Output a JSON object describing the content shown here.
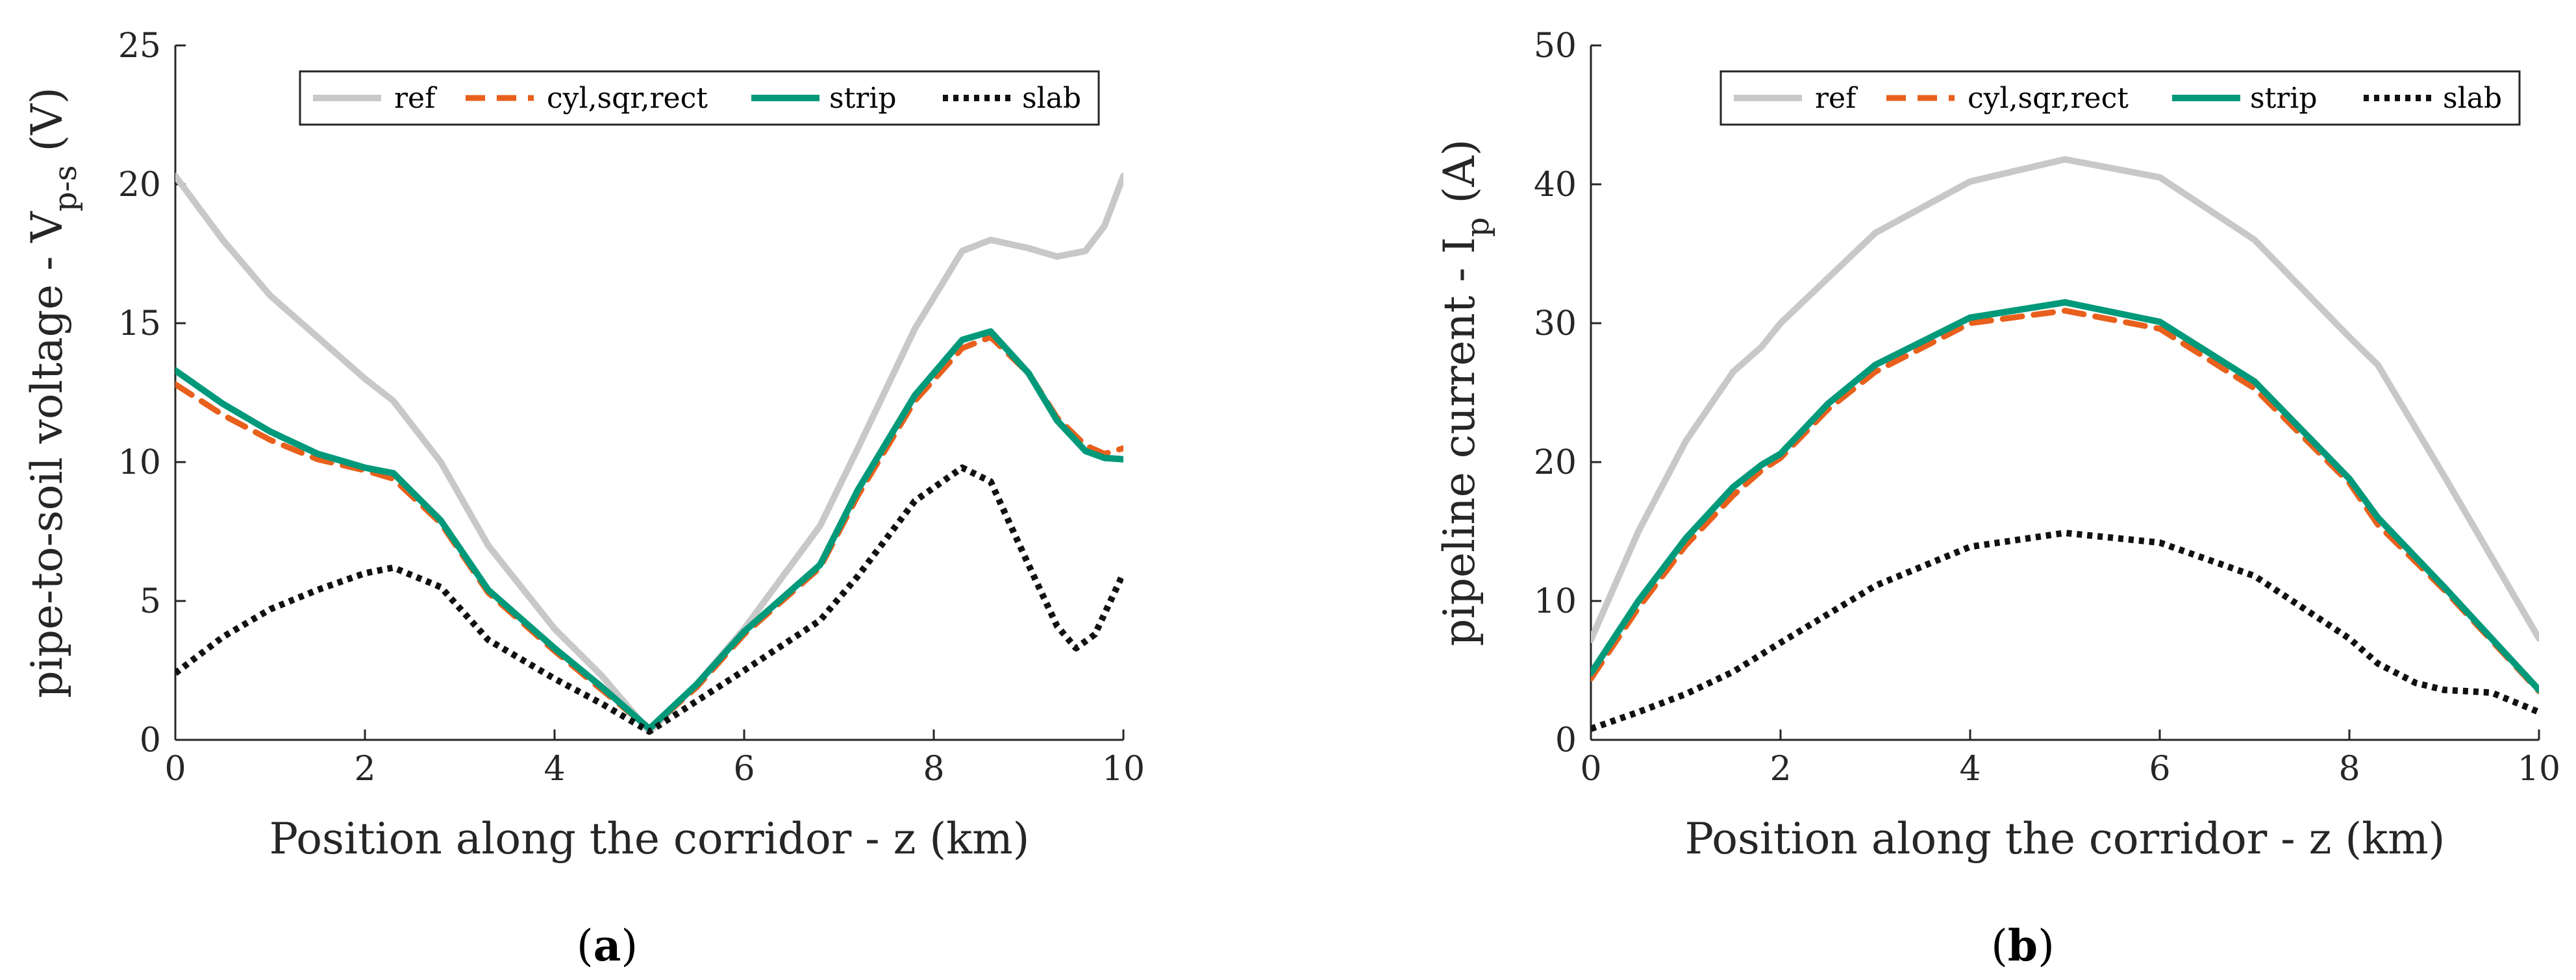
{
  "colors": {
    "ref": "#c8c8c8",
    "cyl_sqr_rect": "#e8601c",
    "strip": "#00997a",
    "slab": "#111111"
  },
  "chart_data": [
    {
      "type": "line",
      "panel_label": {
        "open": "(",
        "letter": "a",
        "close": ")"
      },
      "xlabel": "Position along the corridor - z (km)",
      "ylabel": {
        "main": "pipe-to-soil voltage - V",
        "sub": "p-s",
        "unit": " (V)"
      },
      "xlim": [
        0,
        10
      ],
      "ylim": [
        0,
        25
      ],
      "xticks": [
        0,
        2,
        4,
        6,
        8,
        10
      ],
      "yticks": [
        0,
        5,
        10,
        15,
        20,
        25
      ],
      "legend_position": "top",
      "series": [
        {
          "name": "ref",
          "style": "solid",
          "color": "#c8c8c8",
          "x": [
            0,
            0.5,
            1,
            1.5,
            2,
            2.3,
            2.8,
            3.3,
            4,
            4.5,
            5,
            5.5,
            6,
            6.8,
            7.2,
            7.8,
            8.3,
            8.6,
            9,
            9.3,
            9.6,
            9.8,
            10
          ],
          "y": [
            20.3,
            18,
            16,
            14.5,
            13,
            12.2,
            10,
            7,
            4,
            2.3,
            0.3,
            2,
            4,
            7.7,
            10.5,
            14.8,
            17.6,
            18,
            17.7,
            17.4,
            17.6,
            18.5,
            20.3
          ]
        },
        {
          "name": "cyl,sqr,rect",
          "style": "dashed",
          "color": "#e8601c",
          "x": [
            0,
            0.5,
            1,
            1.5,
            2,
            2.3,
            2.8,
            3.3,
            4,
            4.5,
            5,
            5.5,
            6,
            6.8,
            7.2,
            7.8,
            8.3,
            8.6,
            9,
            9.3,
            9.6,
            9.8,
            10
          ],
          "y": [
            12.8,
            11.7,
            10.8,
            10.1,
            9.7,
            9.4,
            7.8,
            5.3,
            3.2,
            1.8,
            0.4,
            1.9,
            3.8,
            6.2,
            8.8,
            12.2,
            14.1,
            14.5,
            13.2,
            11.6,
            10.6,
            10.3,
            10.5
          ]
        },
        {
          "name": "strip",
          "style": "solid",
          "color": "#00997a",
          "x": [
            0,
            0.5,
            1,
            1.5,
            2,
            2.3,
            2.8,
            3.3,
            4,
            4.5,
            5,
            5.5,
            6,
            6.8,
            7.2,
            7.8,
            8.3,
            8.6,
            9,
            9.3,
            9.6,
            9.8,
            10
          ],
          "y": [
            13.3,
            12.1,
            11.1,
            10.3,
            9.8,
            9.6,
            7.9,
            5.4,
            3.3,
            1.9,
            0.4,
            2,
            3.9,
            6.3,
            9,
            12.4,
            14.4,
            14.7,
            13.2,
            11.5,
            10.4,
            10.15,
            10.1
          ]
        },
        {
          "name": "slab",
          "style": "dotted",
          "color": "#111111",
          "x": [
            0,
            0.5,
            1,
            1.5,
            2,
            2.3,
            2.8,
            3.3,
            4,
            4.5,
            5,
            5.5,
            6,
            6.8,
            7.2,
            7.8,
            8.3,
            8.6,
            9,
            9.3,
            9.5,
            9.7,
            10
          ],
          "y": [
            2.4,
            3.7,
            4.7,
            5.4,
            6,
            6.2,
            5.5,
            3.6,
            2.2,
            1.3,
            0.3,
            1.4,
            2.5,
            4.3,
            5.9,
            8.6,
            9.8,
            9.3,
            6.3,
            4.1,
            3.3,
            3.8,
            6
          ]
        }
      ]
    },
    {
      "type": "line",
      "panel_label": {
        "open": "(",
        "letter": "b",
        "close": ")"
      },
      "xlabel": "Position along the corridor - z (km)",
      "ylabel": {
        "main": "pipeline current - I",
        "sub": "p",
        "unit": " (A)"
      },
      "xlim": [
        0,
        10
      ],
      "ylim": [
        0,
        50
      ],
      "xticks": [
        0,
        2,
        4,
        6,
        8,
        10
      ],
      "yticks": [
        0,
        10,
        20,
        30,
        40,
        50
      ],
      "legend_position": "top",
      "series": [
        {
          "name": "ref",
          "style": "solid",
          "color": "#c8c8c8",
          "x": [
            0,
            0.5,
            1,
            1.5,
            1.8,
            2,
            3,
            4,
            5,
            6,
            7,
            8,
            8.3,
            9,
            10
          ],
          "y": [
            7.2,
            15,
            21.5,
            26.5,
            28.3,
            30,
            36.5,
            40.2,
            41.8,
            40.5,
            36,
            29,
            27,
            19,
            7.3
          ]
        },
        {
          "name": "cyl,sqr,rect",
          "style": "dashed",
          "color": "#e8601c",
          "x": [
            0,
            0.5,
            1,
            1.5,
            1.8,
            2,
            2.5,
            3,
            4,
            5,
            6,
            7,
            8,
            8.3,
            9,
            10
          ],
          "y": [
            4.4,
            9.5,
            14,
            17.6,
            19.4,
            20.3,
            23.8,
            26.5,
            30,
            30.9,
            29.6,
            25.3,
            18.5,
            15.5,
            10.8,
            3.5
          ]
        },
        {
          "name": "strip",
          "style": "solid",
          "color": "#00997a",
          "x": [
            0,
            0.5,
            1,
            1.5,
            1.8,
            2,
            2.5,
            3,
            4,
            5,
            6,
            7,
            8,
            8.3,
            9,
            10
          ],
          "y": [
            4.8,
            10,
            14.5,
            18.2,
            19.8,
            20.6,
            24.2,
            27,
            30.4,
            31.5,
            30.1,
            25.8,
            18.8,
            16,
            11,
            3.6
          ]
        },
        {
          "name": "slab",
          "style": "dotted",
          "color": "#111111",
          "x": [
            0,
            0.5,
            1,
            1.5,
            2,
            3,
            4,
            5,
            6,
            7,
            8,
            8.3,
            8.7,
            9,
            9.5,
            10
          ],
          "y": [
            0.8,
            2,
            3.3,
            4.9,
            7,
            11.1,
            13.9,
            14.9,
            14.2,
            11.8,
            7.3,
            5.5,
            4.1,
            3.6,
            3.4,
            2
          ]
        }
      ]
    }
  ]
}
